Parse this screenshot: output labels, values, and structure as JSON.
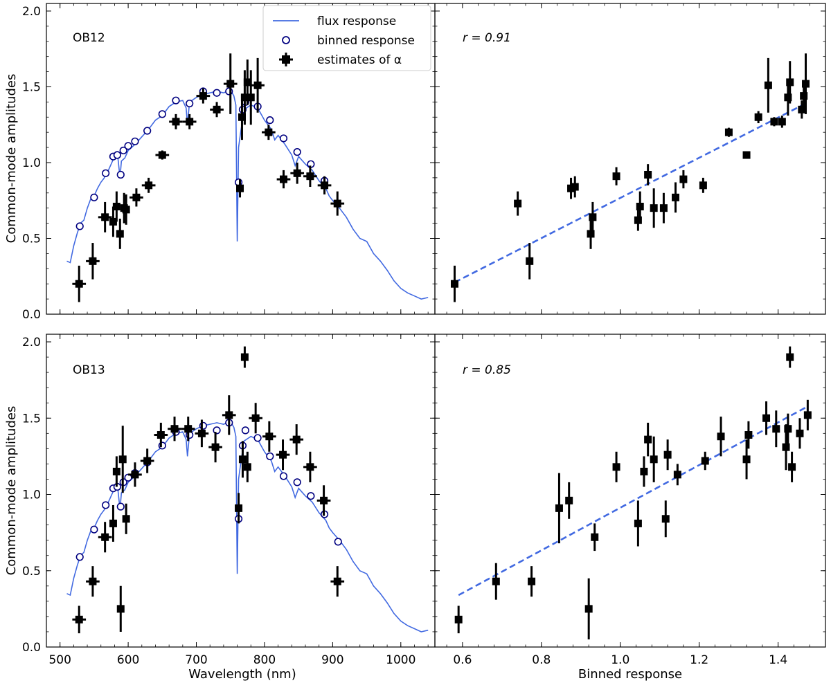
{
  "chart_data": [
    {
      "type": "line+scatter",
      "panel_label": "OB12",
      "xlabel": "",
      "ylabel": "Common-mode amplitudes",
      "xlim": [
        480,
        1050
      ],
      "ylim": [
        0,
        2.05
      ],
      "xticks": [
        500,
        600,
        700,
        800,
        900,
        1000
      ],
      "yticks": [
        0.0,
        0.5,
        1.0,
        1.5,
        2.0
      ],
      "ytick_labels": [
        "0.0",
        "0.5",
        "1.0",
        "1.5",
        "2.0"
      ],
      "legend": {
        "position": "top-right",
        "entries": [
          "flux response",
          "binned response",
          "estimates of α"
        ]
      },
      "flux_response": {
        "x": [
          510,
          515,
          520,
          525,
          530,
          535,
          540,
          545,
          550,
          555,
          560,
          565,
          570,
          575,
          580,
          585,
          588,
          590,
          595,
          600,
          605,
          610,
          620,
          630,
          640,
          650,
          660,
          670,
          680,
          685,
          687,
          690,
          700,
          710,
          720,
          730,
          740,
          750,
          755,
          758,
          760,
          762,
          765,
          770,
          780,
          790,
          800,
          810,
          815,
          820,
          830,
          840,
          845,
          850,
          860,
          870,
          880,
          890,
          895,
          900,
          910,
          920,
          930,
          940,
          950,
          960,
          970,
          980,
          990,
          1000,
          1010,
          1020,
          1030,
          1040
        ],
        "y": [
          0.35,
          0.34,
          0.45,
          0.53,
          0.6,
          0.62,
          0.7,
          0.76,
          0.78,
          0.83,
          0.87,
          0.9,
          0.94,
          0.99,
          1.04,
          1.03,
          0.9,
          1.01,
          1.03,
          1.08,
          1.1,
          1.12,
          1.17,
          1.22,
          1.28,
          1.31,
          1.37,
          1.4,
          1.41,
          1.36,
          1.25,
          1.4,
          1.43,
          1.45,
          1.46,
          1.47,
          1.46,
          1.48,
          1.44,
          1.38,
          0.48,
          1.1,
          1.2,
          1.35,
          1.38,
          1.36,
          1.28,
          1.22,
          1.15,
          1.18,
          1.12,
          1.05,
          0.98,
          1.04,
          0.99,
          0.95,
          0.88,
          0.83,
          0.78,
          0.75,
          0.7,
          0.64,
          0.56,
          0.5,
          0.48,
          0.4,
          0.35,
          0.29,
          0.22,
          0.17,
          0.14,
          0.12,
          0.1,
          0.11
        ]
      },
      "binned_response": {
        "x": [
          529,
          550,
          567,
          578,
          584,
          589,
          593,
          600,
          610,
          628,
          650,
          670,
          690,
          710,
          730,
          748,
          762,
          768,
          772,
          790,
          808,
          828,
          848,
          868,
          888
        ],
        "y": [
          0.58,
          0.77,
          0.93,
          1.04,
          1.05,
          0.92,
          1.08,
          1.11,
          1.14,
          1.21,
          1.32,
          1.41,
          1.39,
          1.47,
          1.46,
          1.47,
          0.87,
          1.35,
          1.4,
          1.37,
          1.28,
          1.16,
          1.07,
          0.99,
          0.88
        ]
      },
      "estimates": {
        "x": [
          528,
          548,
          566,
          578,
          583,
          588,
          594,
          597,
          612,
          630,
          650,
          670,
          690,
          710,
          730,
          750,
          764,
          767,
          771,
          775,
          780,
          790,
          806,
          828,
          848,
          867,
          888,
          907
        ],
        "y": [
          0.2,
          0.35,
          0.64,
          0.61,
          0.71,
          0.53,
          0.7,
          0.69,
          0.77,
          0.85,
          1.05,
          1.27,
          1.27,
          1.44,
          1.35,
          1.52,
          0.83,
          1.3,
          1.43,
          1.53,
          1.43,
          1.51,
          1.2,
          0.89,
          0.93,
          0.91,
          0.85,
          0.73
        ],
        "yerr": [
          0.12,
          0.12,
          0.1,
          0.1,
          0.1,
          0.1,
          0.1,
          0.1,
          0.06,
          0.05,
          0.03,
          0.05,
          0.05,
          0.05,
          0.05,
          0.2,
          0.06,
          0.15,
          0.18,
          0.15,
          0.18,
          0.18,
          0.05,
          0.06,
          0.07,
          0.07,
          0.06,
          0.08
        ],
        "xerr": [
          10,
          10,
          10,
          5,
          4,
          4,
          5,
          5,
          10,
          10,
          10,
          10,
          10,
          10,
          10,
          10,
          4,
          4,
          4,
          4,
          4,
          10,
          10,
          10,
          10,
          10,
          10,
          10
        ]
      }
    },
    {
      "type": "scatter",
      "annotation": "r = 0.91",
      "xlabel": "",
      "ylabel": "",
      "xlim": [
        0.53,
        1.52
      ],
      "ylim": [
        0,
        2.05
      ],
      "xticks": [
        0.6,
        0.8,
        1.0,
        1.2,
        1.4
      ],
      "yticks": [
        0.0,
        0.5,
        1.0,
        1.5,
        2.0
      ],
      "fit_line": {
        "x": [
          0.58,
          1.47
        ],
        "y": [
          0.21,
          1.39
        ]
      },
      "points": {
        "x": [
          0.58,
          0.74,
          0.77,
          0.875,
          0.885,
          0.925,
          0.93,
          0.99,
          1.045,
          1.05,
          1.07,
          1.085,
          1.11,
          1.14,
          1.16,
          1.21,
          1.275,
          1.32,
          1.35,
          1.375,
          1.39,
          1.41,
          1.425,
          1.43,
          1.46,
          1.465,
          1.47
        ],
        "y": [
          0.2,
          0.73,
          0.35,
          0.83,
          0.84,
          0.53,
          0.64,
          0.91,
          0.62,
          0.71,
          0.92,
          0.7,
          0.7,
          0.77,
          0.89,
          0.85,
          1.2,
          1.05,
          1.3,
          1.51,
          1.27,
          1.27,
          1.43,
          1.53,
          1.35,
          1.44,
          1.52
        ],
        "yerr": [
          0.12,
          0.08,
          0.12,
          0.07,
          0.07,
          0.1,
          0.1,
          0.06,
          0.07,
          0.1,
          0.07,
          0.13,
          0.1,
          0.1,
          0.06,
          0.05,
          0.03,
          0.02,
          0.04,
          0.18,
          0.03,
          0.04,
          0.12,
          0.14,
          0.06,
          0.1,
          0.2
        ]
      }
    },
    {
      "type": "line+scatter",
      "panel_label": "OB13",
      "xlabel": "Wavelength (nm)",
      "ylabel": "Common-mode amplitudes",
      "xlim": [
        480,
        1050
      ],
      "ylim": [
        0,
        2.05
      ],
      "xticks": [
        500,
        600,
        700,
        800,
        900,
        1000
      ],
      "xtick_labels": [
        "500",
        "600",
        "700",
        "800",
        "900",
        "1000"
      ],
      "yticks": [
        0.0,
        0.5,
        1.0,
        1.5,
        2.0
      ],
      "ytick_labels": [
        "0.0",
        "0.5",
        "1.0",
        "1.5",
        "2.0"
      ],
      "flux_response": {
        "x": [
          510,
          515,
          520,
          525,
          530,
          535,
          540,
          545,
          550,
          555,
          560,
          565,
          570,
          575,
          580,
          585,
          588,
          590,
          595,
          600,
          605,
          610,
          620,
          630,
          640,
          650,
          660,
          670,
          680,
          685,
          687,
          690,
          700,
          710,
          720,
          730,
          740,
          750,
          755,
          758,
          760,
          762,
          765,
          770,
          780,
          790,
          800,
          810,
          815,
          820,
          830,
          840,
          845,
          850,
          860,
          870,
          880,
          890,
          895,
          900,
          910,
          920,
          930,
          940,
          950,
          960,
          970,
          980,
          990,
          1000,
          1010,
          1020,
          1030,
          1040
        ],
        "y": [
          0.35,
          0.34,
          0.45,
          0.53,
          0.6,
          0.62,
          0.7,
          0.76,
          0.78,
          0.83,
          0.87,
          0.9,
          0.94,
          0.99,
          1.04,
          1.03,
          0.9,
          1.01,
          1.03,
          1.08,
          1.1,
          1.12,
          1.17,
          1.22,
          1.28,
          1.31,
          1.37,
          1.4,
          1.41,
          1.36,
          1.25,
          1.4,
          1.43,
          1.45,
          1.46,
          1.47,
          1.46,
          1.48,
          1.44,
          1.38,
          0.48,
          1.1,
          1.2,
          1.35,
          1.38,
          1.36,
          1.28,
          1.22,
          1.15,
          1.18,
          1.12,
          1.05,
          0.98,
          1.04,
          0.99,
          0.95,
          0.88,
          0.83,
          0.78,
          0.75,
          0.7,
          0.64,
          0.56,
          0.5,
          0.48,
          0.4,
          0.35,
          0.29,
          0.22,
          0.17,
          0.14,
          0.12,
          0.1,
          0.11
        ]
      },
      "binned_response": {
        "x": [
          529,
          550,
          567,
          578,
          584,
          589,
          593,
          600,
          610,
          628,
          650,
          670,
          690,
          710,
          730,
          748,
          762,
          768,
          772,
          790,
          808,
          828,
          848,
          868,
          888,
          908
        ],
        "y": [
          0.59,
          0.77,
          0.93,
          1.04,
          1.05,
          0.92,
          1.08,
          1.11,
          1.14,
          1.21,
          1.32,
          1.41,
          1.39,
          1.45,
          1.42,
          1.47,
          0.84,
          1.32,
          1.42,
          1.37,
          1.25,
          1.12,
          1.08,
          0.99,
          0.87,
          0.69
        ]
      },
      "estimates": {
        "x": [
          528,
          548,
          566,
          578,
          583,
          589,
          592,
          597,
          610,
          628,
          648,
          668,
          688,
          708,
          728,
          748,
          762,
          768,
          771,
          775,
          787,
          807,
          827,
          847,
          867,
          887,
          907
        ],
        "y": [
          0.18,
          0.43,
          0.72,
          0.81,
          1.15,
          0.25,
          1.23,
          0.84,
          1.13,
          1.22,
          1.39,
          1.43,
          1.43,
          1.4,
          1.31,
          1.52,
          0.91,
          1.23,
          1.9,
          1.18,
          1.5,
          1.38,
          1.26,
          1.36,
          1.18,
          0.96,
          0.43
        ],
        "yerr": [
          0.09,
          0.1,
          0.1,
          0.12,
          0.1,
          0.15,
          0.22,
          0.1,
          0.08,
          0.08,
          0.08,
          0.08,
          0.08,
          0.09,
          0.1,
          0.13,
          0.1,
          0.12,
          0.07,
          0.1,
          0.1,
          0.1,
          0.1,
          0.1,
          0.1,
          0.1,
          0.1
        ],
        "xerr": [
          10,
          10,
          10,
          5,
          4,
          4,
          5,
          5,
          10,
          10,
          10,
          10,
          10,
          10,
          10,
          10,
          4,
          4,
          4,
          4,
          10,
          10,
          10,
          10,
          10,
          10,
          10
        ]
      }
    },
    {
      "type": "scatter",
      "annotation": "r = 0.85",
      "xlabel": "Binned response",
      "ylabel": "",
      "xlim": [
        0.53,
        1.52
      ],
      "ylim": [
        0,
        2.05
      ],
      "xticks": [
        0.6,
        0.8,
        1.0,
        1.2,
        1.4
      ],
      "xtick_labels": [
        "0.6",
        "0.8",
        "1.0",
        "1.2",
        "1.4"
      ],
      "yticks": [
        0.0,
        0.5,
        1.0,
        1.5,
        2.0
      ],
      "fit_line": {
        "x": [
          0.59,
          1.47
        ],
        "y": [
          0.34,
          1.57
        ]
      },
      "points": {
        "x": [
          0.59,
          0.685,
          0.775,
          0.845,
          0.87,
          0.92,
          0.935,
          0.99,
          1.045,
          1.06,
          1.07,
          1.085,
          1.115,
          1.12,
          1.145,
          1.215,
          1.255,
          1.32,
          1.325,
          1.37,
          1.395,
          1.42,
          1.425,
          1.43,
          1.435,
          1.455,
          1.475
        ],
        "y": [
          0.18,
          0.43,
          0.43,
          0.91,
          0.96,
          0.25,
          0.72,
          1.18,
          0.81,
          1.15,
          1.36,
          1.23,
          0.84,
          1.26,
          1.13,
          1.22,
          1.38,
          1.23,
          1.39,
          1.5,
          1.43,
          1.31,
          1.43,
          1.9,
          1.18,
          1.4,
          1.52
        ],
        "yerr": [
          0.09,
          0.12,
          0.1,
          0.23,
          0.12,
          0.2,
          0.09,
          0.1,
          0.15,
          0.1,
          0.11,
          0.15,
          0.12,
          0.1,
          0.07,
          0.06,
          0.13,
          0.13,
          0.09,
          0.11,
          0.12,
          0.15,
          0.1,
          0.07,
          0.1,
          0.1,
          0.1
        ]
      }
    }
  ]
}
